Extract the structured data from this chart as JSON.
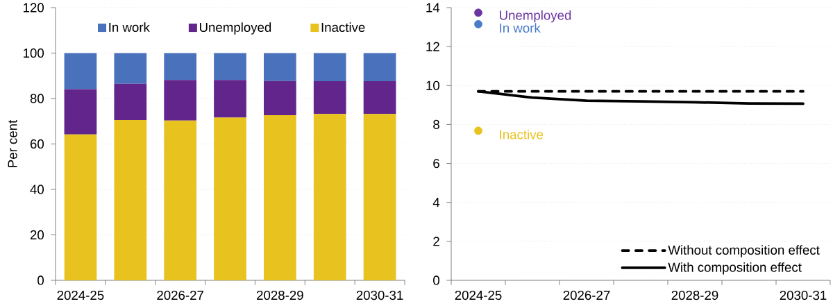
{
  "chart_data": [
    {
      "type": "bar",
      "stacked": true,
      "ylabel": "Per cent",
      "categories": [
        "2024-25",
        null,
        "2026-27",
        null,
        "2028-29",
        null,
        "2030-31"
      ],
      "series": [
        {
          "name": "Inactive",
          "color": "#e8c21f",
          "values": [
            64.2,
            70.5,
            70.3,
            71.6,
            72.7,
            73.2,
            73.2
          ]
        },
        {
          "name": "Unemployed",
          "color": "#62258b",
          "values": [
            19.9,
            16.0,
            17.9,
            16.6,
            15.0,
            14.4,
            14.4
          ]
        },
        {
          "name": "In work",
          "color": "#4a72bc",
          "values": [
            15.9,
            13.5,
            11.8,
            11.8,
            12.3,
            12.4,
            12.4
          ]
        }
      ],
      "ylim": [
        0,
        120
      ],
      "yticks": [
        0,
        20,
        40,
        60,
        80,
        100,
        120
      ],
      "grid": "y",
      "legend": "top"
    },
    {
      "type": "line",
      "categories": [
        "2024-25",
        null,
        "2026-27",
        null,
        "2028-29",
        null,
        "2030-31"
      ],
      "series": [
        {
          "name": "Without composition effect",
          "color": "#000000",
          "line_style": "dashed",
          "values": [
            9.7,
            9.7,
            9.7,
            9.7,
            9.7,
            9.7,
            9.7
          ]
        },
        {
          "name": "With composition effect",
          "color": "#000000",
          "line_style": "solid",
          "values": [
            9.7,
            9.38,
            9.22,
            9.19,
            9.14,
            9.08,
            9.07
          ]
        },
        {
          "name": "Unemployed",
          "type": "scatter",
          "color": "#6c34a0",
          "values": [
            13.74,
            null,
            null,
            null,
            null,
            null,
            null
          ]
        },
        {
          "name": "In work",
          "type": "scatter",
          "color": "#4a7bc8",
          "values": [
            13.15,
            null,
            null,
            null,
            null,
            null,
            null
          ]
        },
        {
          "name": "Inactive",
          "type": "scatter",
          "color": "#e8c21f",
          "values": [
            7.68,
            null,
            null,
            null,
            null,
            null,
            null
          ]
        }
      ],
      "ylim": [
        0,
        14
      ],
      "yticks": [
        0,
        2,
        4,
        6,
        8,
        10,
        12,
        14
      ],
      "grid": "y",
      "legend": "bottom right"
    }
  ]
}
